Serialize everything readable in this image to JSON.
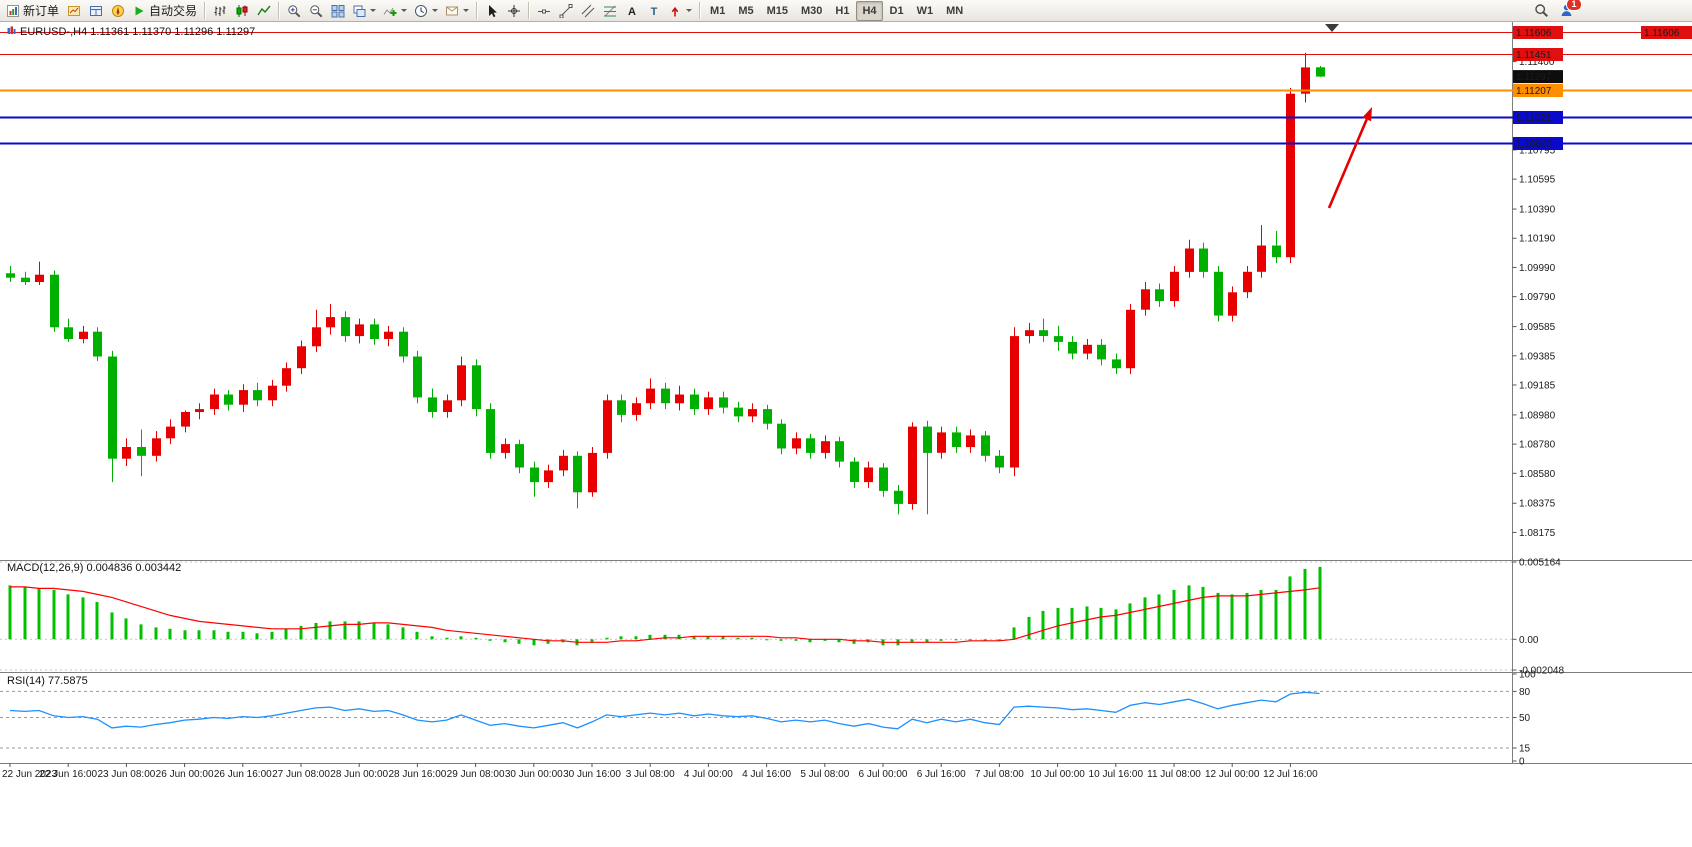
{
  "toolbar": {
    "new_order_label": "新订单",
    "autotrading_label": "自动交易",
    "timeframes": [
      "M1",
      "M5",
      "M15",
      "M30",
      "H1",
      "H4",
      "D1",
      "W1",
      "MN"
    ],
    "active_timeframe": "H4",
    "notification_count": "1"
  },
  "chart": {
    "title_line": "EURUSD-,H4  1.11361 1.11370 1.11296 1.11297",
    "symbol": "EURUSD-",
    "period": "H4"
  },
  "indicator_labels": {
    "macd": "MACD(12,26,9) 0.004836 0.003442",
    "rsi": "RSI(14) 77.5875"
  },
  "colors": {
    "up": "#e80000",
    "down": "#00b000",
    "macd_hist": "#00c000",
    "macd_signal": "#ff0000",
    "rsi": "#1e90ff",
    "annotation": "#e60000"
  },
  "annotations": [
    {
      "shape": "arrow",
      "color": "#e60000",
      "direction": "up-right"
    }
  ],
  "chart_data": [
    {
      "type": "candlestick",
      "panel": "main",
      "symbol": "EURUSD-",
      "timeframe": "H4",
      "y_range": [
        1.08,
        1.1163
      ],
      "y_ticks": [
        "1.11400",
        "1.10795",
        "1.10595",
        "1.10390",
        "1.10190",
        "1.09990",
        "1.09790",
        "1.09585",
        "1.09385",
        "1.09185",
        "1.08980",
        "1.08780",
        "1.08580",
        "1.08375",
        "1.08175"
      ],
      "x_labels": [
        "22 Jun 2023",
        "22 Jun 16:00",
        "23 Jun 08:00",
        "26 Jun 00:00",
        "26 Jun 16:00",
        "27 Jun 08:00",
        "28 Jun 00:00",
        "28 Jun 16:00",
        "29 Jun 08:00",
        "30 Jun 00:00",
        "30 Jun 16:00",
        "3 Jul 08:00",
        "4 Jul 00:00",
        "4 Jul 16:00",
        "5 Jul 08:00",
        "6 Jul 00:00",
        "6 Jul 16:00",
        "7 Jul 08:00",
        "10 Jul 00:00",
        "10 Jul 16:00",
        "11 Jul 08:00",
        "12 Jul 00:00",
        "12 Jul 16:00"
      ],
      "x_label_every_n_bars": 4,
      "current_price": 1.11297,
      "current_price_label": "1.11297",
      "current_bar": {
        "open": 1.11361,
        "high": 1.1137,
        "low": 1.11296,
        "close": 1.11297
      },
      "horizontal_lines": [
        {
          "price": 1.11606,
          "label": "1.11606",
          "color": "#e01010",
          "width": 1
        },
        {
          "price": 1.11451,
          "label": "1.11451",
          "color": "#e01010",
          "width": 1
        },
        {
          "price": 1.11207,
          "label": "1.11207",
          "color": "#ff8d00",
          "width": 2
        },
        {
          "price": 1.11021,
          "label": "1.11021",
          "color": "#0a0acc",
          "width": 2
        },
        {
          "price": 1.1084,
          "label": "1.10840",
          "color": "#0a0acc",
          "width": 2
        }
      ],
      "ohlc": [
        [
          1.0995,
          1.1,
          1.0989,
          1.0992
        ],
        [
          1.0992,
          1.0996,
          1.0987,
          1.0989
        ],
        [
          1.0989,
          1.1003,
          1.0987,
          1.0994
        ],
        [
          1.0994,
          1.0997,
          1.0955,
          1.0958
        ],
        [
          1.0958,
          1.0964,
          1.0948,
          1.095
        ],
        [
          1.095,
          1.0959,
          1.0947,
          1.0955
        ],
        [
          1.0955,
          1.0958,
          1.0935,
          1.0938
        ],
        [
          1.0938,
          1.0942,
          1.0852,
          1.0868
        ],
        [
          1.0868,
          1.0882,
          1.0863,
          1.0876
        ],
        [
          1.0876,
          1.0888,
          1.0856,
          1.087
        ],
        [
          1.087,
          1.0887,
          1.0866,
          1.0882
        ],
        [
          1.0882,
          1.0895,
          1.0878,
          1.089
        ],
        [
          1.089,
          1.0901,
          1.0886,
          1.09
        ],
        [
          1.09,
          1.0906,
          1.0895,
          1.0902
        ],
        [
          1.0902,
          1.0916,
          1.0898,
          1.0912
        ],
        [
          1.0912,
          1.0915,
          1.0901,
          1.0905
        ],
        [
          1.0905,
          1.0919,
          1.09,
          1.0915
        ],
        [
          1.0915,
          1.092,
          1.0904,
          1.0908
        ],
        [
          1.0908,
          1.0922,
          1.0904,
          1.0918
        ],
        [
          1.0918,
          1.0934,
          1.0914,
          1.093
        ],
        [
          1.093,
          1.0949,
          1.0926,
          1.0945
        ],
        [
          1.0945,
          1.097,
          1.0941,
          1.0958
        ],
        [
          1.0958,
          1.0974,
          1.0953,
          1.0965
        ],
        [
          1.0965,
          1.0969,
          1.0948,
          1.0952
        ],
        [
          1.0952,
          1.0964,
          1.0947,
          1.096
        ],
        [
          1.096,
          1.0964,
          1.0946,
          1.095
        ],
        [
          1.095,
          1.0959,
          1.0945,
          1.0955
        ],
        [
          1.0955,
          1.0958,
          1.0934,
          1.0938
        ],
        [
          1.0938,
          1.0942,
          1.0906,
          1.091
        ],
        [
          1.091,
          1.0916,
          1.0896,
          1.09
        ],
        [
          1.09,
          1.0912,
          1.0896,
          1.0908
        ],
        [
          1.0908,
          1.0938,
          1.0904,
          1.0932
        ],
        [
          1.0932,
          1.0936,
          1.0897,
          1.0902
        ],
        [
          1.0902,
          1.0906,
          1.0868,
          1.0872
        ],
        [
          1.0872,
          1.0882,
          1.0868,
          1.0878
        ],
        [
          1.0878,
          1.0881,
          1.0858,
          1.0862
        ],
        [
          1.0862,
          1.0866,
          1.0842,
          1.0852
        ],
        [
          1.0852,
          1.0864,
          1.0848,
          1.086
        ],
        [
          1.086,
          1.0874,
          1.0856,
          1.087
        ],
        [
          1.087,
          1.0873,
          1.0834,
          1.0845
        ],
        [
          1.0845,
          1.0876,
          1.0842,
          1.0872
        ],
        [
          1.0872,
          1.0912,
          1.0868,
          1.0908
        ],
        [
          1.0908,
          1.0912,
          1.0893,
          1.0898
        ],
        [
          1.0898,
          1.091,
          1.0894,
          1.0906
        ],
        [
          1.0906,
          1.0923,
          1.0902,
          1.0916
        ],
        [
          1.0916,
          1.092,
          1.0902,
          1.0906
        ],
        [
          1.0906,
          1.0918,
          1.0901,
          1.0912
        ],
        [
          1.0912,
          1.0916,
          1.0898,
          1.0902
        ],
        [
          1.0902,
          1.0914,
          1.0898,
          1.091
        ],
        [
          1.091,
          1.0914,
          1.0899,
          1.0903
        ],
        [
          1.0903,
          1.0907,
          1.0893,
          1.0897
        ],
        [
          1.0897,
          1.0906,
          1.0893,
          1.0902
        ],
        [
          1.0902,
          1.0905,
          1.0888,
          1.0892
        ],
        [
          1.0892,
          1.0895,
          1.0871,
          1.0875
        ],
        [
          1.0875,
          1.0886,
          1.0871,
          1.0882
        ],
        [
          1.0882,
          1.0885,
          1.0868,
          1.0872
        ],
        [
          1.0872,
          1.0884,
          1.0868,
          1.088
        ],
        [
          1.088,
          1.0883,
          1.0862,
          1.0866
        ],
        [
          1.0866,
          1.0869,
          1.0848,
          1.0852
        ],
        [
          1.0852,
          1.0866,
          1.0848,
          1.0862
        ],
        [
          1.0862,
          1.0865,
          1.0842,
          1.0846
        ],
        [
          1.0846,
          1.085,
          1.083,
          1.0837
        ],
        [
          1.0837,
          1.0893,
          1.0833,
          1.089
        ],
        [
          1.089,
          1.0894,
          1.083,
          1.0872
        ],
        [
          1.0872,
          1.089,
          1.0868,
          1.0886
        ],
        [
          1.0886,
          1.089,
          1.0872,
          1.0876
        ],
        [
          1.0876,
          1.0888,
          1.0872,
          1.0884
        ],
        [
          1.0884,
          1.0887,
          1.0866,
          1.087
        ],
        [
          1.087,
          1.0874,
          1.0858,
          1.0862
        ],
        [
          1.0862,
          1.0958,
          1.0856,
          1.0952
        ],
        [
          1.0952,
          1.0961,
          1.0947,
          1.0956
        ],
        [
          1.0956,
          1.0964,
          1.0948,
          1.0952
        ],
        [
          1.0952,
          1.0959,
          1.0942,
          1.0948
        ],
        [
          1.0948,
          1.0952,
          1.0936,
          1.094
        ],
        [
          1.094,
          1.095,
          1.0936,
          1.0946
        ],
        [
          1.0946,
          1.095,
          1.0932,
          1.0936
        ],
        [
          1.0936,
          1.094,
          1.0926,
          1.093
        ],
        [
          1.093,
          1.0974,
          1.0926,
          1.097
        ],
        [
          1.097,
          1.0989,
          1.0966,
          1.0984
        ],
        [
          1.0984,
          1.0988,
          1.0972,
          1.0976
        ],
        [
          1.0976,
          1.1,
          1.0972,
          1.0996
        ],
        [
          1.0996,
          1.1018,
          1.0992,
          1.1012
        ],
        [
          1.1012,
          1.1016,
          1.0992,
          1.0996
        ],
        [
          1.0996,
          1.1,
          1.0962,
          1.0966
        ],
        [
          1.0966,
          1.0986,
          1.0962,
          1.0982
        ],
        [
          1.0982,
          1.1,
          1.0978,
          1.0996
        ],
        [
          1.0996,
          1.1028,
          1.0992,
          1.1014
        ],
        [
          1.1014,
          1.1024,
          1.1002,
          1.1006
        ],
        [
          1.1006,
          1.1122,
          1.1002,
          1.1118
        ],
        [
          1.1118,
          1.1146,
          1.1112,
          1.1136
        ],
        [
          1.11361,
          1.1137,
          1.11296,
          1.11297
        ]
      ]
    },
    {
      "type": "bar",
      "subtype": "macd",
      "panel": "indicator1",
      "title": "MACD(12,26,9)",
      "current_values": [
        0.004836,
        0.003442
      ],
      "y_range": [
        -0.002048,
        0.005164
      ],
      "y_ticks": [
        "0.005164",
        "0.00",
        "-0.002048"
      ],
      "histogram": [
        0.0036,
        0.0035,
        0.0034,
        0.0033,
        0.003,
        0.0028,
        0.0025,
        0.0018,
        0.0014,
        0.001,
        0.0008,
        0.0007,
        0.0006,
        0.0006,
        0.0006,
        0.0005,
        0.0005,
        0.0004,
        0.0005,
        0.0007,
        0.0009,
        0.0011,
        0.0012,
        0.0012,
        0.0012,
        0.0011,
        0.001,
        0.0008,
        0.0005,
        0.0002,
        0.0001,
        0.0002,
        0.0001,
        -0.0001,
        -0.0002,
        -0.0003,
        -0.0004,
        -0.0003,
        -0.0002,
        -0.0004,
        -0.0002,
        0.0001,
        0.0002,
        0.0002,
        0.0003,
        0.0003,
        0.0003,
        0.0002,
        0.0002,
        0.0002,
        0.0001,
        0.0001,
        0.0,
        -0.0001,
        -0.0001,
        -0.0002,
        -0.0001,
        -0.0002,
        -0.0003,
        -0.0002,
        -0.0004,
        -0.0004,
        -0.0002,
        -0.0002,
        -0.0001,
        0.0,
        0.0,
        -0.0001,
        -0.0001,
        0.0008,
        0.0015,
        0.0019,
        0.0021,
        0.0021,
        0.0022,
        0.0021,
        0.002,
        0.0024,
        0.0028,
        0.003,
        0.0033,
        0.0036,
        0.0035,
        0.0031,
        0.003,
        0.0031,
        0.0033,
        0.0033,
        0.0042,
        0.0047,
        0.004836
      ],
      "signal": [
        0.0035,
        0.0035,
        0.0034,
        0.0034,
        0.0033,
        0.0032,
        0.003,
        0.0028,
        0.0025,
        0.0022,
        0.0019,
        0.0016,
        0.0014,
        0.0012,
        0.0011,
        0.001,
        0.0009,
        0.0008,
        0.0007,
        0.0007,
        0.0007,
        0.0008,
        0.0009,
        0.001,
        0.001,
        0.0011,
        0.0011,
        0.001,
        0.0009,
        0.0008,
        0.0006,
        0.0005,
        0.0004,
        0.0003,
        0.0002,
        0.0001,
        0.0,
        -0.0001,
        -0.0001,
        -0.0002,
        -0.0002,
        -0.0002,
        -0.0001,
        -0.0001,
        0.0,
        0.0001,
        0.0001,
        0.0002,
        0.0002,
        0.0002,
        0.0002,
        0.0002,
        0.0002,
        0.0001,
        0.0001,
        0.0,
        0.0,
        0.0,
        -0.0001,
        -0.0001,
        -0.0002,
        -0.0002,
        -0.0002,
        -0.0002,
        -0.0002,
        -0.0002,
        -0.0001,
        -0.0001,
        -0.0001,
        0.0,
        0.0003,
        0.0006,
        0.0009,
        0.0011,
        0.0013,
        0.0015,
        0.0016,
        0.0018,
        0.002,
        0.0022,
        0.0024,
        0.0026,
        0.0028,
        0.0029,
        0.0029,
        0.0029,
        0.003,
        0.0031,
        0.0032,
        0.0033,
        0.003442
      ]
    },
    {
      "type": "line",
      "subtype": "rsi",
      "panel": "indicator2",
      "title": "RSI(14)",
      "current_value": 77.5875,
      "y_range": [
        0,
        100
      ],
      "levels": [
        80,
        50,
        15
      ],
      "y_ticks": [
        "100",
        "80",
        "50",
        "15",
        "0"
      ],
      "values": [
        58,
        57,
        58,
        52,
        50,
        51,
        48,
        38,
        40,
        39,
        42,
        44,
        47,
        48,
        50,
        49,
        51,
        50,
        52,
        55,
        58,
        61,
        62,
        58,
        60,
        57,
        58,
        53,
        47,
        45,
        47,
        53,
        47,
        41,
        43,
        40,
        38,
        41,
        44,
        38,
        45,
        53,
        51,
        53,
        55,
        53,
        55,
        52,
        54,
        52,
        51,
        52,
        49,
        45,
        47,
        45,
        47,
        43,
        40,
        43,
        39,
        37,
        48,
        44,
        48,
        45,
        48,
        44,
        42,
        62,
        63,
        62,
        61,
        59,
        60,
        58,
        56,
        64,
        67,
        65,
        68,
        71,
        66,
        60,
        64,
        67,
        70,
        68,
        77,
        79,
        77.59
      ]
    }
  ]
}
